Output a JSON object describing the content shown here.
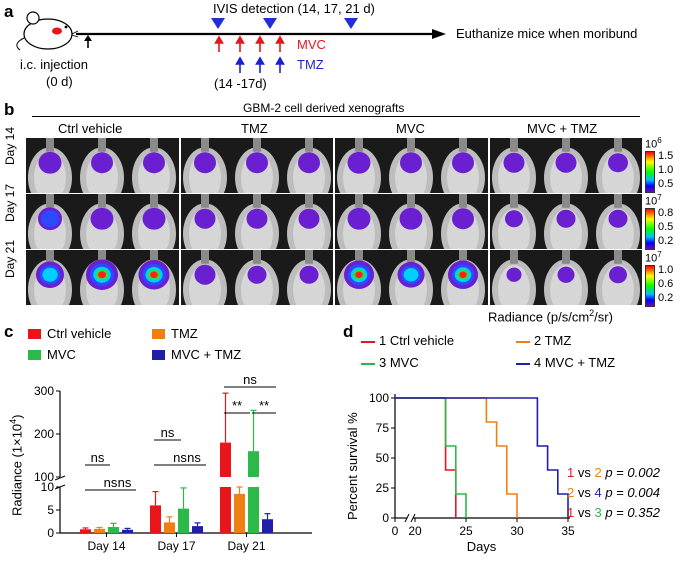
{
  "panel_a": {
    "label": "a",
    "ivis_text": "IVIS detection (14, 17, 21 d)",
    "euthanize_text": "Euthanize mice when moribund",
    "injection_text": "i.c. injection",
    "injection_day": "(0 d)",
    "mvc_label": "MVC",
    "tmz_label": "TMZ",
    "tmz_days": "(14 -17d)",
    "colors": {
      "mvc": "#e8151b",
      "tmz": "#1f1fd1",
      "ivis": "#1f2fd1"
    }
  },
  "panel_b": {
    "label": "b",
    "header": "GBM-2 cell derived xenografts",
    "groups": [
      "Ctrl vehicle",
      "TMZ",
      "MVC",
      "MVC + TMZ"
    ],
    "days": [
      "Day 14",
      "Day 17",
      "Day 21"
    ],
    "colorbars": [
      {
        "exp": "10",
        "sup": "6",
        "ticks": [
          "1.5",
          "1.0",
          "0.5"
        ]
      },
      {
        "exp": "10",
        "sup": "7",
        "ticks": [
          "0.8",
          "0.5",
          "0.2"
        ]
      },
      {
        "exp": "10",
        "sup": "7",
        "ticks": [
          "1.0",
          "0.6",
          "0.2"
        ]
      }
    ],
    "radiance_label": "Radiance (p/s/cm",
    "radiance_sup": "2",
    "radiance_tail": "/sr)"
  },
  "panel_c": {
    "label": "c",
    "legend": [
      "Ctrl vehicle",
      "TMZ",
      "MVC",
      "MVC + TMZ"
    ],
    "ylabel": "Radiance (1×10",
    "ylabel_sup": "4",
    "ylabel_tail": ")",
    "sig": {
      "ns": "ns",
      "ss": "**"
    }
  },
  "panel_d": {
    "label": "d",
    "legend": [
      "1 Ctrl vehicle",
      "2 TMZ",
      "3 MVC",
      "4 MVC + TMZ"
    ],
    "ylabel": "Percent survival %",
    "xlabel": "Days",
    "stats": [
      {
        "a": "1",
        "vs": "vs",
        "b": "2",
        "p": "p = 0.002"
      },
      {
        "a": "2",
        "vs": "vs",
        "b": "4",
        "p": "p = 0.004"
      },
      {
        "a": "1",
        "vs": "vs",
        "b": "3",
        "p": "p = 0.352"
      }
    ]
  },
  "chart_data": [
    {
      "type": "bar",
      "categories": [
        "Day 14",
        "Day 17",
        "Day 21"
      ],
      "ylabel": "Radiance (1×10^4)",
      "y_axis_break": {
        "lower": [
          0,
          10
        ],
        "upper": [
          100,
          300
        ]
      },
      "yticks_lower": [
        0,
        5,
        10
      ],
      "yticks_upper": [
        100,
        200,
        300
      ],
      "series": [
        {
          "name": "Ctrl vehicle",
          "color": "#e8151b",
          "values": [
            0.8,
            6.0,
            180
          ],
          "errors": [
            0.3,
            3.0,
            115
          ]
        },
        {
          "name": "TMZ",
          "color": "#f07f13",
          "values": [
            0.9,
            2.3,
            8.5
          ],
          "errors": [
            0.3,
            1.2,
            1.5
          ]
        },
        {
          "name": "MVC",
          "color": "#2db84a",
          "values": [
            1.3,
            5.3,
            160
          ],
          "errors": [
            0.8,
            4.5,
            95
          ]
        },
        {
          "name": "MVC + TMZ",
          "color": "#1f1fa8",
          "values": [
            0.7,
            1.5,
            3.0
          ],
          "errors": [
            0.3,
            0.7,
            1.2
          ]
        }
      ]
    },
    {
      "type": "line",
      "xlabel": "Days",
      "ylabel": "Percent survival %",
      "xticks": [
        0,
        20,
        25,
        30,
        35
      ],
      "yticks": [
        0,
        25,
        50,
        75,
        100
      ],
      "series": [
        {
          "name": "1 Ctrl vehicle",
          "color": "#e8151b",
          "x": [
            0,
            23,
            23,
            24,
            24
          ],
          "y": [
            100,
            100,
            40,
            40,
            0
          ]
        },
        {
          "name": "2 TMZ",
          "color": "#f07f13",
          "x": [
            0,
            27,
            27,
            28,
            28,
            29,
            29,
            30,
            30
          ],
          "y": [
            100,
            100,
            80,
            80,
            60,
            60,
            20,
            20,
            0
          ]
        },
        {
          "name": "3 MVC",
          "color": "#2db84a",
          "x": [
            0,
            23,
            23,
            24,
            24,
            25,
            25
          ],
          "y": [
            100,
            100,
            60,
            60,
            20,
            20,
            0
          ]
        },
        {
          "name": "4 MVC + TMZ",
          "color": "#1f1fa8",
          "x": [
            0,
            32,
            32,
            33,
            33,
            34,
            34,
            35,
            35
          ],
          "y": [
            100,
            100,
            60,
            60,
            40,
            40,
            20,
            20,
            0
          ]
        }
      ]
    }
  ]
}
